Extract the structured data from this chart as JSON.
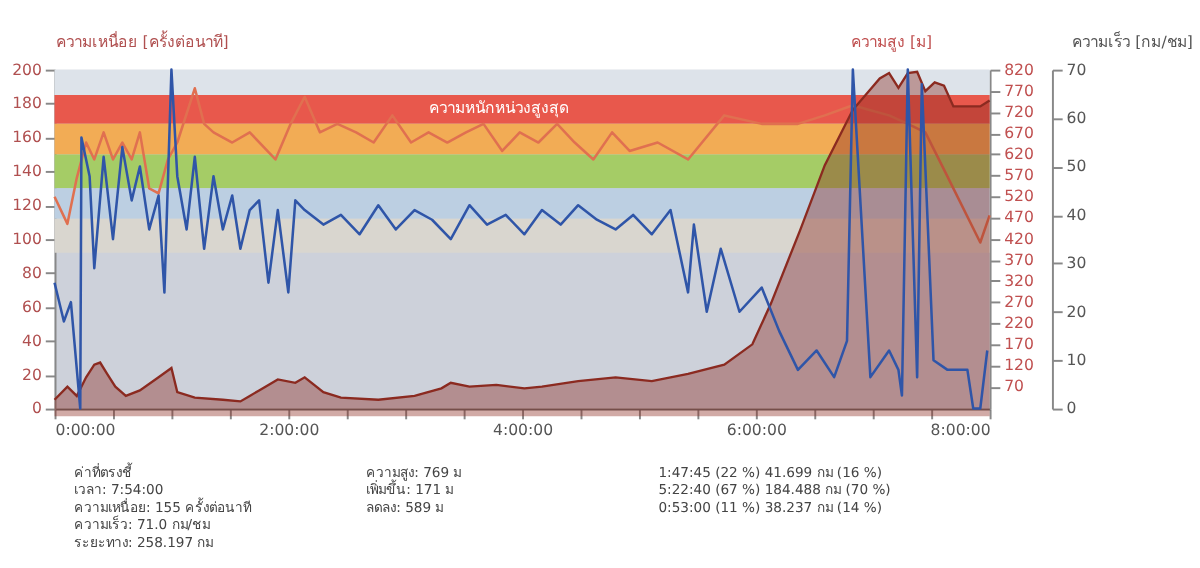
{
  "chart_data": {
    "type": "line",
    "ylabel": "ความเหนื่อย [ครั้งต่อนาที]",
    "y2label": "ความสูง [ม]",
    "y3label": "ความเร็ว [กม/ชม]",
    "xlim": [
      0,
      8
    ],
    "xticks": [
      {
        "value": 0,
        "label": "0:00:00"
      },
      {
        "value": 0.5,
        "label": null
      },
      {
        "value": 1,
        "label": null
      },
      {
        "value": 1.5,
        "label": null
      },
      {
        "value": 2,
        "label": "2:00:00"
      },
      {
        "value": 2.5,
        "label": null
      },
      {
        "value": 3,
        "label": null
      },
      {
        "value": 3.5,
        "label": null
      },
      {
        "value": 4,
        "label": "4:00:00"
      },
      {
        "value": 4.5,
        "label": null
      },
      {
        "value": 5,
        "label": null
      },
      {
        "value": 5.5,
        "label": null
      },
      {
        "value": 6,
        "label": "6:00:00"
      },
      {
        "value": 6.5,
        "label": null
      },
      {
        "value": 7,
        "label": null
      },
      {
        "value": 7.5,
        "label": null
      },
      {
        "value": 8,
        "label": "8:00:00"
      }
    ],
    "ylim": [
      0,
      200
    ],
    "yticks": [
      0,
      20,
      40,
      60,
      80,
      100,
      120,
      140,
      160,
      180,
      200
    ],
    "y2lim": [
      18,
      820
    ],
    "y2ticks": [
      70,
      120,
      170,
      220,
      270,
      320,
      370,
      420,
      470,
      520,
      570,
      620,
      670,
      720,
      770,
      820
    ],
    "y3lim": [
      0,
      70
    ],
    "y3ticks": [
      0,
      10,
      20,
      30,
      40,
      50,
      60,
      70
    ],
    "grid": false,
    "bands": [
      {
        "axis": "y",
        "from": 185,
        "to": 200,
        "color": "#dde3ea"
      },
      {
        "axis": "y",
        "from": 168,
        "to": 185,
        "color": "#e8584c",
        "label": "ความหนักหน่วงสูงสุด"
      },
      {
        "axis": "y",
        "from": 150,
        "to": 168,
        "color": "#f2ac55"
      },
      {
        "axis": "y",
        "from": 130,
        "to": 150,
        "color": "#a5cc66"
      },
      {
        "axis": "y",
        "from": 112,
        "to": 130,
        "color": "#bccfe2"
      },
      {
        "axis": "y",
        "from": 92,
        "to": 112,
        "color": "#d9d6cf"
      }
    ],
    "series": [
      {
        "type": "area",
        "axis": "y2",
        "color": "#8b2a20",
        "x": [
          0,
          0.11,
          0.19,
          0.27,
          0.34,
          0.39,
          0.45,
          0.52,
          0.61,
          0.73,
          0.89,
          1.0,
          1.05,
          1.2,
          1.44,
          1.59,
          1.67,
          1.75,
          1.91,
          2.06,
          2.14,
          2.3,
          2.45,
          2.77,
          3.08,
          3.31,
          3.39,
          3.55,
          3.78,
          4.02,
          4.17,
          4.48,
          4.8,
          5.11,
          5.42,
          5.73,
          5.97,
          6.13,
          6.38,
          6.59,
          6.83,
          7.06,
          7.14,
          7.22,
          7.3,
          7.38,
          7.45,
          7.53,
          7.61,
          7.69,
          7.77,
          7.92,
          8.0
        ],
        "values": [
          39,
          70,
          48,
          92,
          122,
          127,
          100,
          70,
          48,
          61,
          92,
          114,
          57,
          44,
          39,
          35,
          48,
          61,
          87,
          79,
          92,
          57,
          44,
          39,
          48,
          66,
          79,
          70,
          74,
          66,
          70,
          83,
          92,
          83,
          100,
          122,
          170,
          267,
          441,
          594,
          725,
          799,
          812,
          777,
          812,
          815,
          769,
          790,
          782,
          733,
          733,
          733,
          747
        ]
      },
      {
        "name": null,
        "color": "#e07050",
        "axis": "y",
        "x": [
          0,
          0.11,
          0.19,
          0.27,
          0.34,
          0.42,
          0.5,
          0.58,
          0.66,
          0.73,
          0.81,
          0.89,
          0.97,
          1.05,
          1.2,
          1.28,
          1.36,
          1.52,
          1.67,
          1.89,
          2.02,
          2.14,
          2.27,
          2.42,
          2.58,
          2.73,
          2.89,
          3.05,
          3.2,
          3.36,
          3.52,
          3.67,
          3.83,
          3.98,
          4.14,
          4.3,
          4.45,
          4.61,
          4.77,
          4.92,
          5.16,
          5.42,
          5.73,
          6.05,
          6.36,
          6.59,
          6.83,
          6.98,
          7.14,
          7.3,
          7.45,
          7.61,
          7.92,
          8.0
        ],
        "values": [
          125,
          109,
          136,
          157,
          147,
          163,
          147,
          157,
          147,
          163,
          130,
          127,
          147,
          157,
          189,
          168,
          163,
          157,
          163,
          147,
          168,
          184,
          163,
          168,
          163,
          157,
          173,
          157,
          163,
          157,
          163,
          168,
          152,
          163,
          157,
          168,
          157,
          147,
          163,
          152,
          157,
          147,
          173,
          168,
          168,
          173,
          179,
          176,
          173,
          168,
          163,
          141,
          98,
          114
        ]
      },
      {
        "color": "#2f55a8",
        "axis": "y3",
        "x": [
          0,
          0.08,
          0.14,
          0.22,
          0.23,
          0.3,
          0.34,
          0.42,
          0.5,
          0.58,
          0.66,
          0.73,
          0.81,
          0.89,
          0.94,
          1.0,
          1.05,
          1.13,
          1.2,
          1.28,
          1.36,
          1.44,
          1.52,
          1.59,
          1.67,
          1.75,
          1.83,
          1.91,
          2.0,
          2.06,
          2.14,
          2.3,
          2.45,
          2.61,
          2.77,
          2.92,
          3.08,
          3.23,
          3.39,
          3.55,
          3.7,
          3.86,
          4.02,
          4.17,
          4.33,
          4.48,
          4.64,
          4.8,
          4.95,
          5.11,
          5.27,
          5.42,
          5.47,
          5.58,
          5.7,
          5.86,
          6.05,
          6.2,
          6.36,
          6.52,
          6.67,
          6.78,
          6.83,
          6.98,
          7.14,
          7.22,
          7.25,
          7.3,
          7.38,
          7.42,
          7.52,
          7.64,
          7.81,
          7.86,
          7.92,
          7.98
        ],
        "values": [
          26,
          18,
          22,
          0,
          56,
          48,
          29,
          52,
          35,
          54,
          43,
          50,
          37,
          44,
          24,
          70,
          48,
          37,
          52,
          33,
          48,
          37,
          44,
          33,
          41,
          43,
          26,
          41,
          24,
          43,
          41,
          38,
          40,
          36,
          42,
          37,
          41,
          39,
          35,
          42,
          38,
          40,
          36,
          41,
          38,
          42,
          39,
          37,
          40,
          36,
          41,
          24,
          38,
          20,
          33,
          20,
          25,
          16,
          8,
          12,
          6.5,
          14,
          70,
          6.5,
          12,
          8,
          2.7,
          70,
          6.5,
          67,
          10,
          8,
          8,
          0,
          0,
          12
        ]
      }
    ],
    "annotations": [
      "ค่าที่ตรงชี้\nเวลา: 7:54:00\nความเหนื่อย: 155 ครั้งต่อนาที\nความเร็ว: 71.0 กม/ชม\nระยะทาง: 258.197 กม",
      "ความสูง: 769 ม\nเพิ่มขึ้น: 171 ม\nลดลง: 589 ม",
      "1:47:45   (22 %)   41.699 กม   (16 %)\n5:22:40   (67 %)   184.488 กม   (70 %)\n0:53:00   (11 %)   38.237 กม   (14 %)"
    ]
  }
}
